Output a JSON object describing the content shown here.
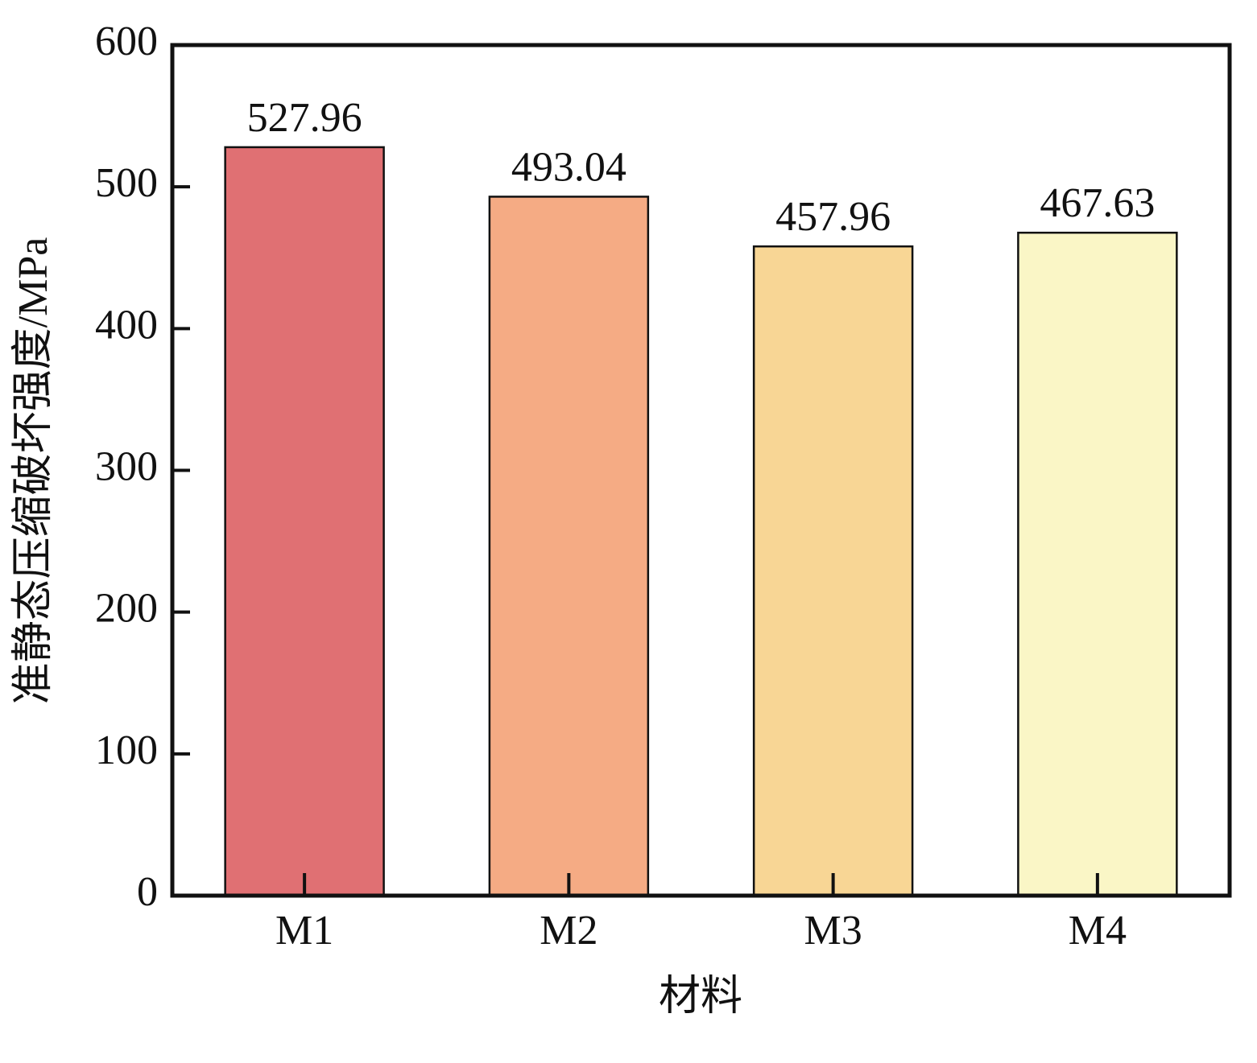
{
  "chart_data": {
    "type": "bar",
    "x_label": "材料",
    "y_label": "准静态压缩破坏强度/MPa",
    "categories": [
      "M1",
      "M2",
      "M3",
      "M4"
    ],
    "values": [
      527.96,
      493.04,
      457.96,
      467.63
    ],
    "colors": [
      "#e07073",
      "#f5ab84",
      "#f8d695",
      "#faf6c6"
    ],
    "ylim": [
      0,
      600
    ],
    "yticks": [
      0,
      100,
      200,
      300,
      400,
      500,
      600
    ],
    "grid": false
  }
}
